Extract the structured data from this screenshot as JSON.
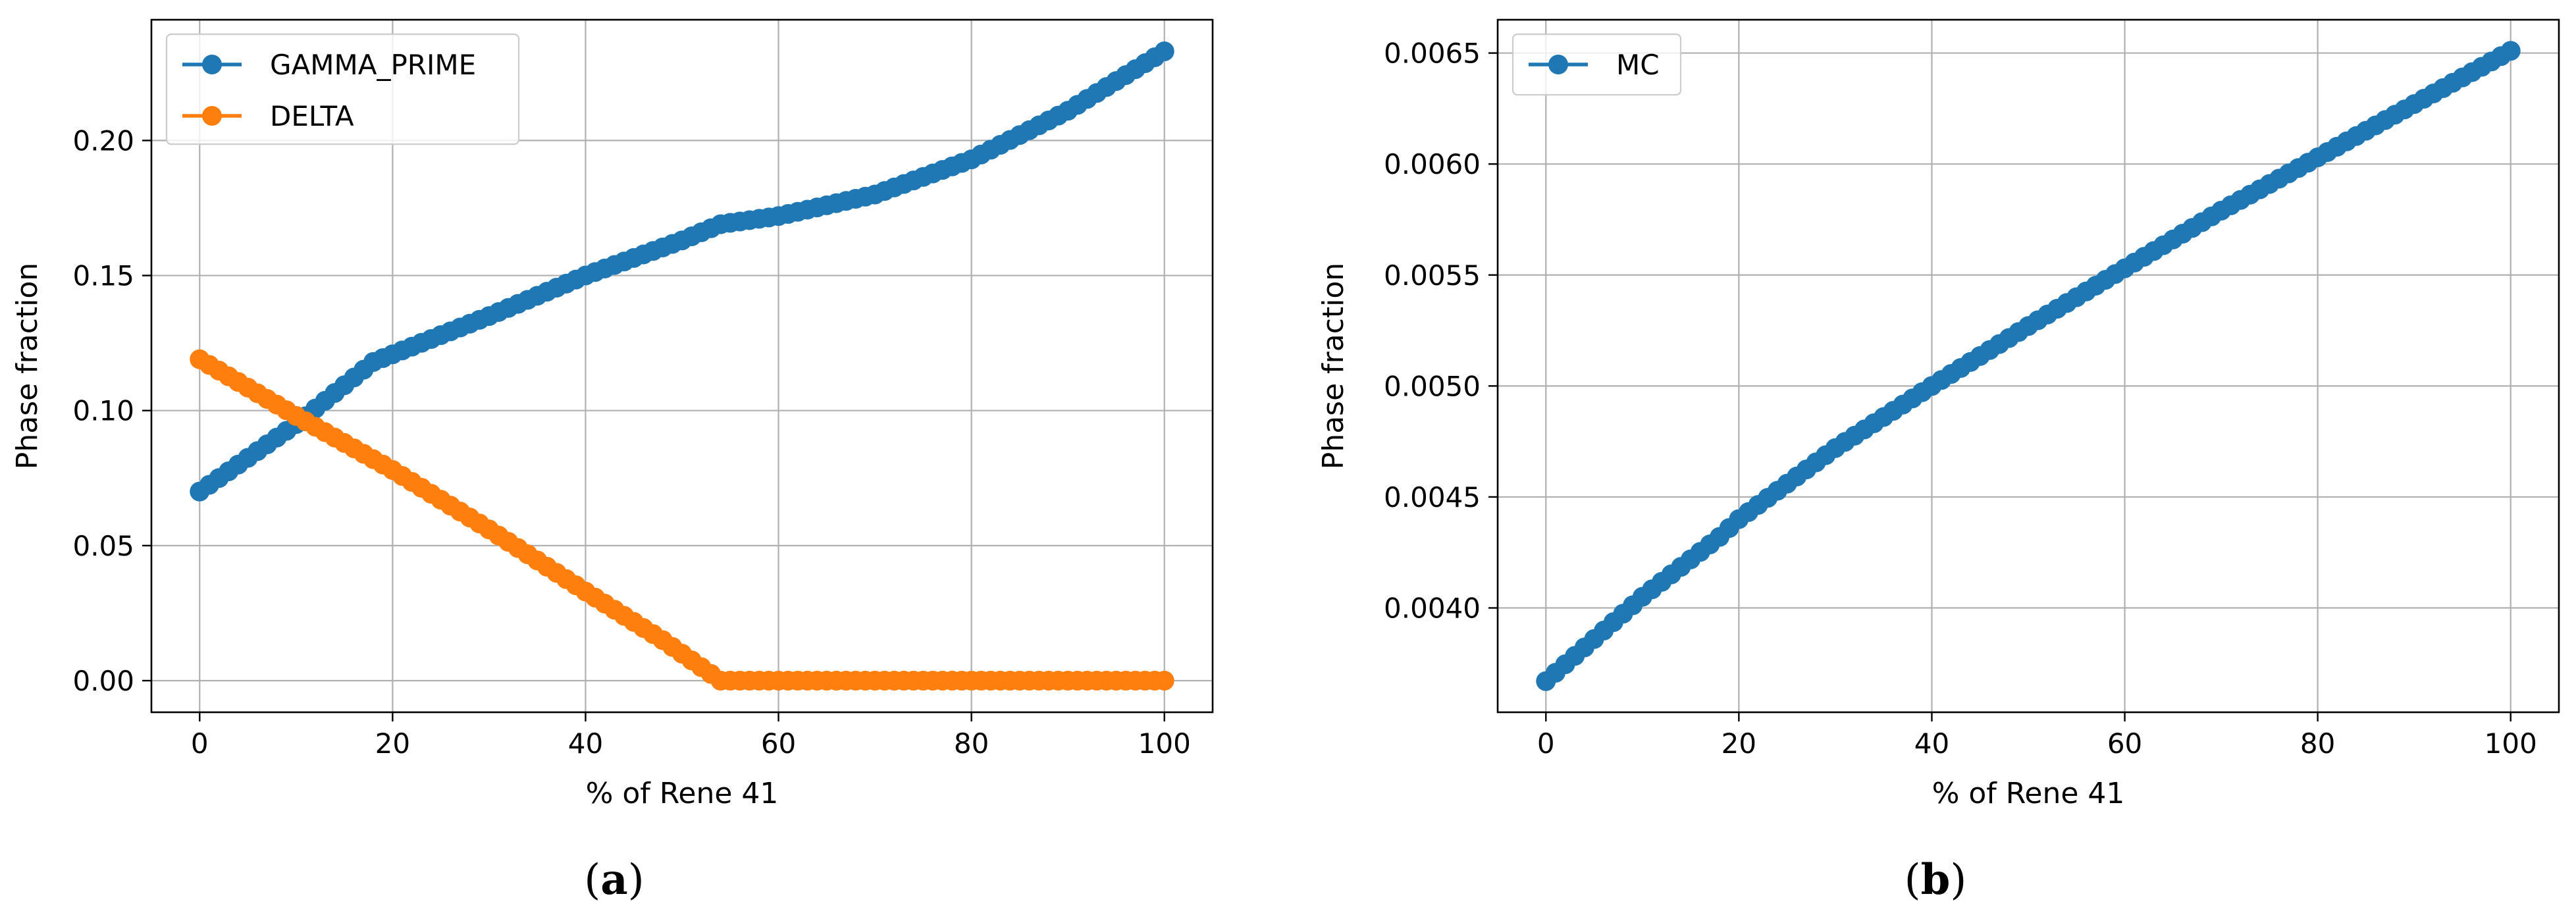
{
  "figure": {
    "captions": [
      {
        "open": "(",
        "letter": "a",
        "close": ")"
      },
      {
        "open": "(",
        "letter": "b",
        "close": ")"
      }
    ]
  },
  "chart_data": [
    {
      "type": "line",
      "panel": "a",
      "xlabel": "% of Rene 41",
      "ylabel": "Phase fraction",
      "xlim": [
        -5,
        105
      ],
      "ylim": [
        -0.0117,
        0.2447
      ],
      "xticks": [
        0,
        20,
        40,
        60,
        80,
        100
      ],
      "xtick_labels": [
        "0",
        "20",
        "40",
        "60",
        "80",
        "100"
      ],
      "yticks": [
        0.0,
        0.05,
        0.1,
        0.15,
        0.2
      ],
      "ytick_labels": [
        "0.00",
        "0.05",
        "0.10",
        "0.15",
        "0.20"
      ],
      "grid": true,
      "legend_position": "upper-left",
      "point_step": 1,
      "series": [
        {
          "name": "GAMMA_PRIME",
          "color": "#1f77b4",
          "marker": "circle",
          "knots": [
            [
              0,
              0.07
            ],
            [
              10,
              0.095
            ],
            [
              18,
              0.118
            ],
            [
              30,
              0.135
            ],
            [
              40,
              0.15
            ],
            [
              50,
              0.163
            ],
            [
              54,
              0.169
            ],
            [
              60,
              0.172
            ],
            [
              70,
              0.18
            ],
            [
              80,
              0.193
            ],
            [
              90,
              0.211
            ],
            [
              100,
              0.233
            ]
          ]
        },
        {
          "name": "DELTA",
          "color": "#ff7f0e",
          "marker": "circle",
          "knots": [
            [
              0,
              0.119
            ],
            [
              10,
              0.098
            ],
            [
              20,
              0.078
            ],
            [
              30,
              0.056
            ],
            [
              40,
              0.033
            ],
            [
              48,
              0.015
            ],
            [
              54,
              0.0
            ],
            [
              100,
              0.0
            ]
          ]
        }
      ]
    },
    {
      "type": "line",
      "panel": "b",
      "xlabel": "% of Rene 41",
      "ylabel": "Phase fraction",
      "xlim": [
        -5,
        105
      ],
      "ylim": [
        0.00353,
        0.00665
      ],
      "xticks": [
        0,
        20,
        40,
        60,
        80,
        100
      ],
      "xtick_labels": [
        "0",
        "20",
        "40",
        "60",
        "80",
        "100"
      ],
      "yticks": [
        0.004,
        0.0045,
        0.005,
        0.0055,
        0.006,
        0.0065
      ],
      "ytick_labels": [
        "0.0040",
        "0.0045",
        "0.0050",
        "0.0055",
        "0.0060",
        "0.0065"
      ],
      "grid": true,
      "legend_position": "upper-left",
      "point_step": 1,
      "series": [
        {
          "name": "MC",
          "color": "#1f77b4",
          "marker": "circle",
          "knots": [
            [
              0,
              0.00367
            ],
            [
              10,
              0.00405
            ],
            [
              18,
              0.00432
            ],
            [
              20,
              0.0044
            ],
            [
              30,
              0.00472
            ],
            [
              40,
              0.005
            ],
            [
              50,
              0.00527
            ],
            [
              60,
              0.00553
            ],
            [
              70,
              0.00579
            ],
            [
              80,
              0.00603
            ],
            [
              90,
              0.00627
            ],
            [
              100,
              0.00651
            ]
          ]
        }
      ]
    }
  ]
}
